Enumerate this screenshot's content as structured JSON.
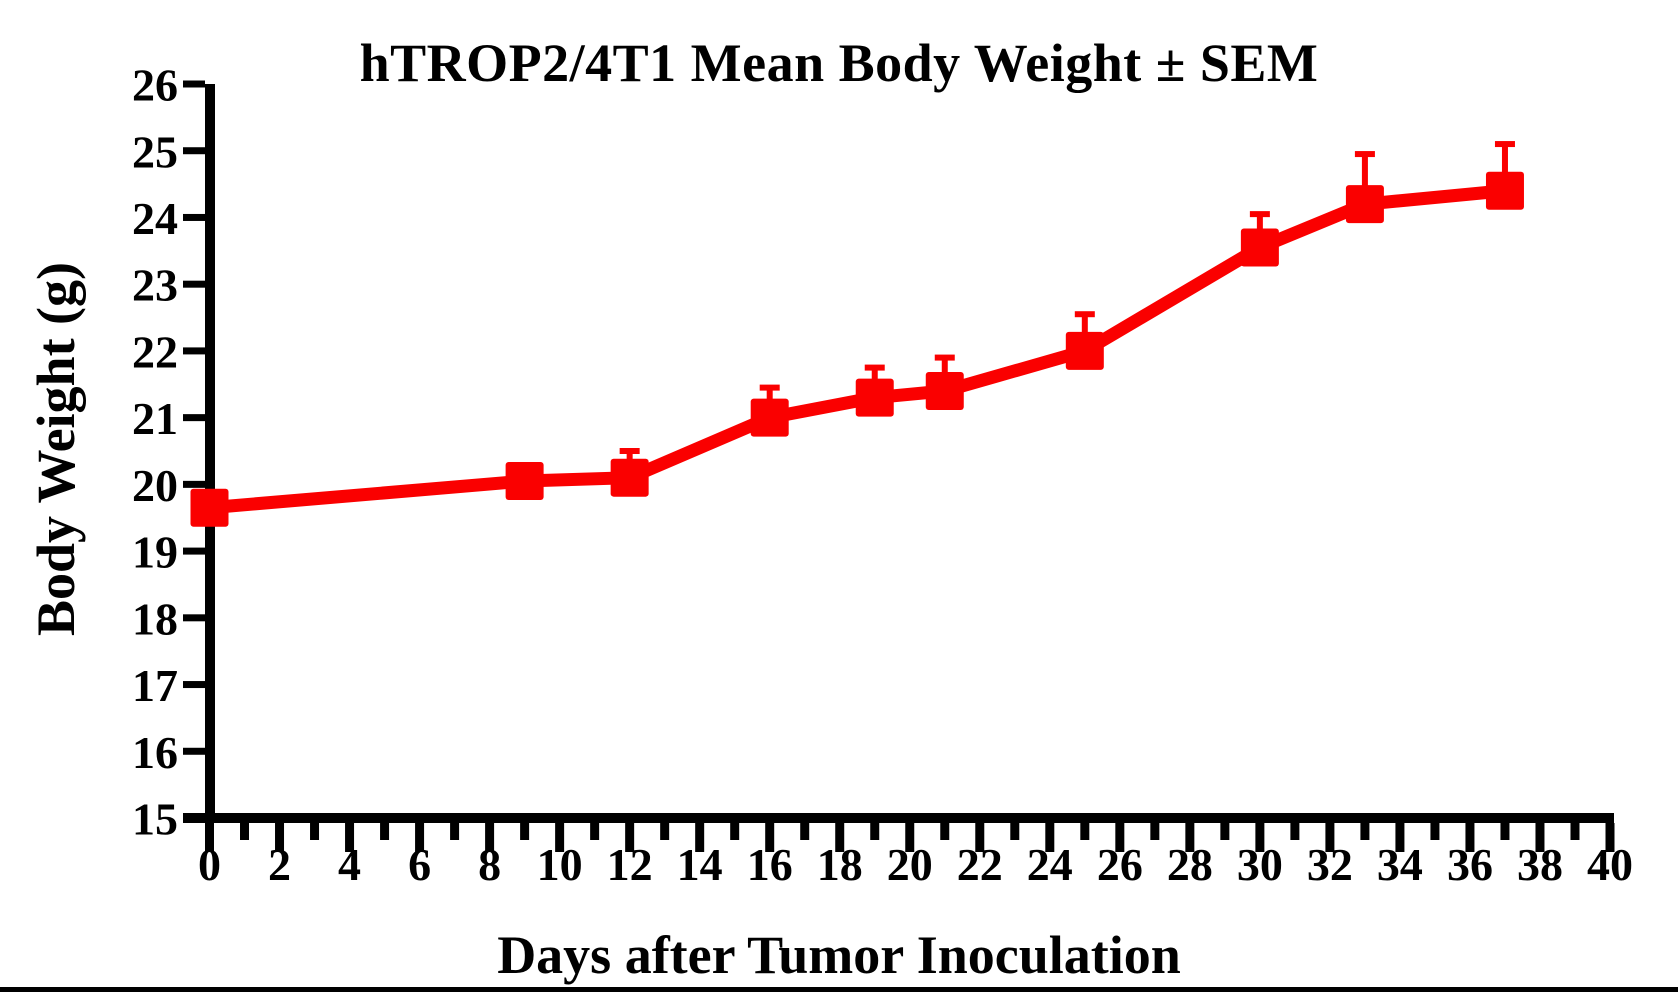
{
  "chart_data": {
    "type": "line",
    "title": "hTROP2/4T1 Mean Body Weight ± SEM",
    "xlabel": "Days after Tumor Inoculation",
    "ylabel": "Body Weight (g)",
    "x": [
      0,
      9,
      12,
      16,
      19,
      21,
      25,
      30,
      33,
      37
    ],
    "series": [
      {
        "name": "hTROP2/4T1",
        "values": [
          19.65,
          20.05,
          20.1,
          21.0,
          21.3,
          21.4,
          22.0,
          23.55,
          24.2,
          24.4
        ],
        "sem_upper": [
          0,
          0,
          0.4,
          0.45,
          0.45,
          0.5,
          0.55,
          0.5,
          0.75,
          0.7
        ],
        "color": "#fa0000",
        "marker": "square"
      }
    ],
    "xlim": [
      0,
      40
    ],
    "ylim": [
      15,
      26
    ],
    "xticks_major": [
      0,
      2,
      4,
      6,
      8,
      10,
      12,
      14,
      16,
      18,
      20,
      22,
      24,
      26,
      28,
      30,
      32,
      34,
      36,
      38,
      40
    ],
    "xticks_minor": [
      1,
      3,
      5,
      7,
      9,
      11,
      13,
      15,
      17,
      19,
      21,
      23,
      25,
      27,
      29,
      31,
      33,
      35,
      37,
      39
    ],
    "yticks": [
      15,
      16,
      17,
      18,
      19,
      20,
      21,
      22,
      23,
      24,
      25,
      26
    ],
    "grid": false,
    "legend": "none",
    "axis_color": "#000000",
    "error_bars": "upper-only"
  }
}
